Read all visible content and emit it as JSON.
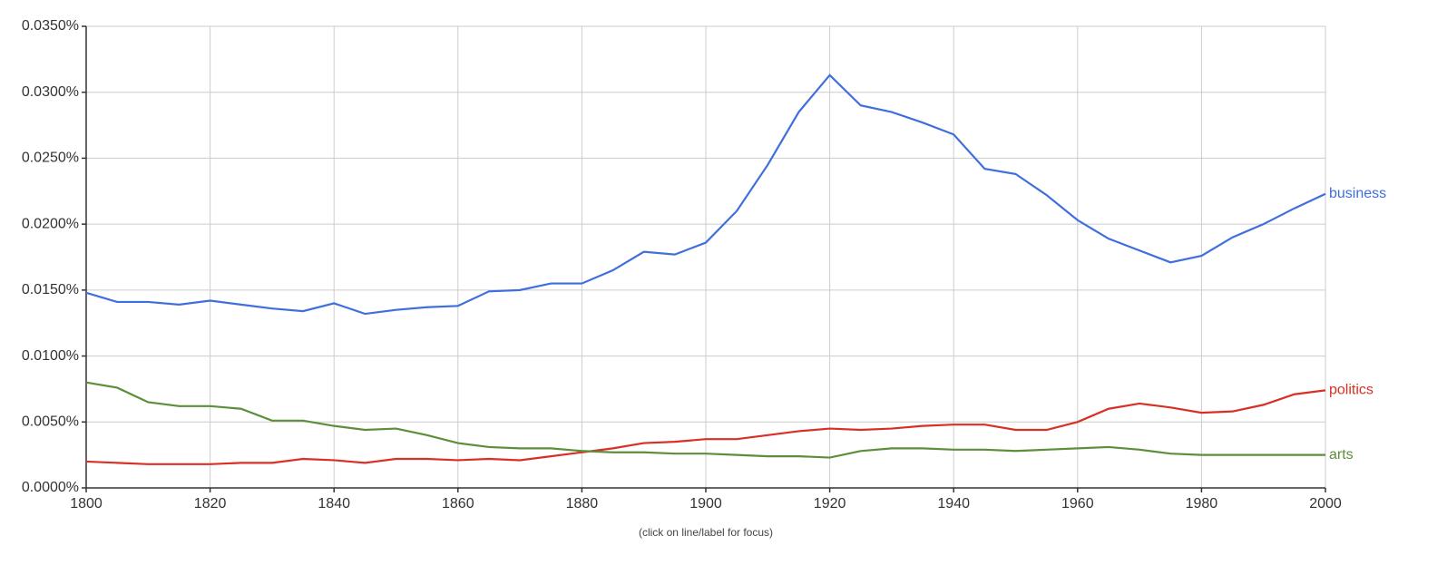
{
  "chart_data": {
    "type": "line",
    "note": "(click on line/label for focus)",
    "x": [
      1800,
      1805,
      1810,
      1815,
      1820,
      1825,
      1830,
      1835,
      1840,
      1845,
      1850,
      1855,
      1860,
      1865,
      1870,
      1875,
      1880,
      1885,
      1890,
      1895,
      1900,
      1905,
      1910,
      1915,
      1920,
      1925,
      1930,
      1935,
      1940,
      1945,
      1950,
      1955,
      1960,
      1965,
      1970,
      1975,
      1980,
      1985,
      1990,
      1995,
      2000
    ],
    "series": [
      {
        "name": "business",
        "color": "#3f6fdc",
        "values": [
          0.0148,
          0.0141,
          0.0141,
          0.0139,
          0.0142,
          0.0139,
          0.0136,
          0.0134,
          0.014,
          0.0132,
          0.0135,
          0.0137,
          0.0138,
          0.0149,
          0.015,
          0.0155,
          0.0155,
          0.0165,
          0.0179,
          0.0177,
          0.0186,
          0.021,
          0.0245,
          0.0285,
          0.0313,
          0.029,
          0.0285,
          0.0277,
          0.0268,
          0.0242,
          0.0238,
          0.0222,
          0.0203,
          0.0189,
          0.018,
          0.0171,
          0.0176,
          0.019,
          0.02,
          0.0212,
          0.0223
        ]
      },
      {
        "name": "politics",
        "color": "#d93025",
        "values": [
          0.002,
          0.0019,
          0.0018,
          0.0018,
          0.0018,
          0.0019,
          0.0019,
          0.0022,
          0.0021,
          0.0019,
          0.0022,
          0.0022,
          0.0021,
          0.0022,
          0.0021,
          0.0024,
          0.0027,
          0.003,
          0.0034,
          0.0035,
          0.0037,
          0.0037,
          0.004,
          0.0043,
          0.0045,
          0.0044,
          0.0045,
          0.0047,
          0.0048,
          0.0048,
          0.0044,
          0.0044,
          0.005,
          0.006,
          0.0064,
          0.0061,
          0.0057,
          0.0058,
          0.0063,
          0.0071,
          0.0074
        ]
      },
      {
        "name": "arts",
        "color": "#5b8f3a",
        "values": [
          0.008,
          0.0076,
          0.0065,
          0.0062,
          0.0062,
          0.006,
          0.0051,
          0.0051,
          0.0047,
          0.0044,
          0.0045,
          0.004,
          0.0034,
          0.0031,
          0.003,
          0.003,
          0.0028,
          0.0027,
          0.0027,
          0.0026,
          0.0026,
          0.0025,
          0.0024,
          0.0024,
          0.0023,
          0.0028,
          0.003,
          0.003,
          0.0029,
          0.0029,
          0.0028,
          0.0029,
          0.003,
          0.0031,
          0.0029,
          0.0026,
          0.0025,
          0.0025,
          0.0025,
          0.0025,
          0.0025
        ]
      }
    ],
    "xlim": [
      1800,
      2000
    ],
    "xticks": [
      1800,
      1820,
      1840,
      1860,
      1880,
      1900,
      1920,
      1940,
      1960,
      1980,
      2000
    ],
    "ylim": [
      0,
      0.035
    ],
    "yticks": [
      {
        "value": 0,
        "label": "0.0000%"
      },
      {
        "value": 0.005,
        "label": "0.0050%"
      },
      {
        "value": 0.01,
        "label": "0.0100%"
      },
      {
        "value": 0.015,
        "label": "0.0150%"
      },
      {
        "value": 0.02,
        "label": "0.0200%"
      },
      {
        "value": 0.025,
        "label": "0.0250%"
      },
      {
        "value": 0.03,
        "label": "0.0300%"
      },
      {
        "value": 0.035,
        "label": "0.0350%"
      }
    ],
    "grid": true
  }
}
